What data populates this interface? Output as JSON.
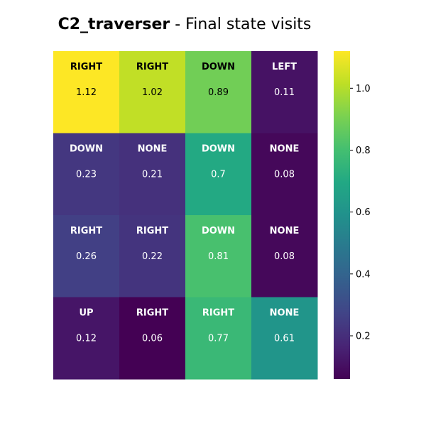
{
  "chart_data": {
    "type": "heatmap",
    "title_bold": "C2_traverser",
    "title_rest": " - Final state visits",
    "xlabel": "",
    "ylabel": "",
    "grid": false,
    "colormap": "viridis",
    "vmin": 0.06,
    "vmax": 1.12,
    "colorbar": {
      "position": "right",
      "ticks": [
        0.2,
        0.4,
        0.6,
        0.8,
        1.0
      ],
      "tick_labels": [
        "0.2",
        "0.4",
        "0.6",
        "0.8",
        "1.0"
      ]
    },
    "rows": [
      [
        {
          "action": "RIGHT",
          "value": 1.12
        },
        {
          "action": "RIGHT",
          "value": 1.02
        },
        {
          "action": "DOWN",
          "value": 0.89
        },
        {
          "action": "LEFT",
          "value": 0.11
        }
      ],
      [
        {
          "action": "DOWN",
          "value": 0.23
        },
        {
          "action": "NONE",
          "value": 0.21
        },
        {
          "action": "DOWN",
          "value": 0.7
        },
        {
          "action": "NONE",
          "value": 0.08
        }
      ],
      [
        {
          "action": "RIGHT",
          "value": 0.26
        },
        {
          "action": "RIGHT",
          "value": 0.22
        },
        {
          "action": "DOWN",
          "value": 0.81
        },
        {
          "action": "NONE",
          "value": 0.08
        }
      ],
      [
        {
          "action": "UP",
          "value": 0.12
        },
        {
          "action": "RIGHT",
          "value": 0.06
        },
        {
          "action": "RIGHT",
          "value": 0.77
        },
        {
          "action": "NONE",
          "value": 0.61
        }
      ]
    ]
  }
}
